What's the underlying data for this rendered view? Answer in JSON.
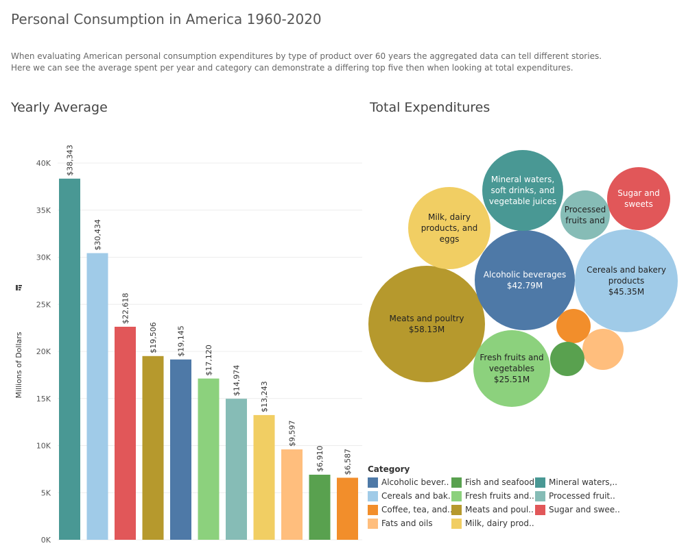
{
  "page": {
    "title": "Personal Consumption in America 1960-2020",
    "description_lines": [
      "When evaluating American personal consumption expenditures by type of product over 60 years the aggregated data can tell different stories.",
      "Here we can see the average spent per year and category can demonstrate a differing top five then when looking at total expenditures."
    ]
  },
  "chart_data": [
    {
      "type": "bar",
      "title": "Yearly Average",
      "ylabel": "Millions of Dollars",
      "ylim": [
        0,
        40000
      ],
      "yticks": [
        0,
        5000,
        10000,
        15000,
        20000,
        25000,
        30000,
        35000,
        40000
      ],
      "ytick_labels": [
        "0K",
        "5K",
        "10K",
        "15K",
        "20K",
        "25K",
        "30K",
        "35K",
        "40K"
      ],
      "grid": true,
      "bars": [
        {
          "category": "Mineral waters, soft drinks, and vegetable juices",
          "value": 38343,
          "label": "$38,343",
          "color": "#499894"
        },
        {
          "category": "Cereals and bakery products",
          "value": 30434,
          "label": "$30,434",
          "color": "#a0cbe8"
        },
        {
          "category": "Sugar and sweets",
          "value": 22618,
          "label": "$22,618",
          "color": "#e15759"
        },
        {
          "category": "Meats and poultry",
          "value": 19506,
          "label": "$19,506",
          "color": "#b6992d"
        },
        {
          "category": "Alcoholic beverages",
          "value": 19145,
          "label": "$19,145",
          "color": "#4e79a7"
        },
        {
          "category": "Fresh fruits and vegetables",
          "value": 17120,
          "label": "$17,120",
          "color": "#8cd17d"
        },
        {
          "category": "Processed fruits and vegetables",
          "value": 14974,
          "label": "$14,974",
          "color": "#86bcb6"
        },
        {
          "category": "Milk, dairy products, and eggs",
          "value": 13243,
          "label": "$13,243",
          "color": "#f1ce63"
        },
        {
          "category": "Fats and oils",
          "value": 9597,
          "label": "$9,597",
          "color": "#ffbe7d"
        },
        {
          "category": "Fish and seafood",
          "value": 6910,
          "label": "$6,910",
          "color": "#59a14f"
        },
        {
          "category": "Coffee, tea, and other beverage materials",
          "value": 6587,
          "label": "$6,587",
          "color": "#f28e2b"
        }
      ]
    },
    {
      "type": "bubble",
      "title": "Total Expenditures",
      "bubbles": [
        {
          "category": "Meats and poultry",
          "lines": [
            "Meats and poultry",
            "$58.13M"
          ],
          "value": 58.13,
          "color": "#b6992d",
          "text_color": "#222222"
        },
        {
          "category": "Cereals and bakery products",
          "lines": [
            "Cereals and bakery",
            "products",
            "$45.35M"
          ],
          "value": 45.35,
          "color": "#a0cbe8",
          "text_color": "#222222"
        },
        {
          "category": "Alcoholic beverages",
          "lines": [
            "Alcoholic beverages",
            "$42.79M"
          ],
          "value": 42.79,
          "color": "#4e79a7",
          "text_color": "#ffffff"
        },
        {
          "category": "Fresh fruits and vegetables",
          "lines": [
            "Fresh fruits and",
            "vegetables",
            "$25.51M"
          ],
          "value": 25.51,
          "color": "#8cd17d",
          "text_color": "#222222"
        },
        {
          "category": "Milk, dairy products, and eggs",
          "lines": [
            "Milk, dairy",
            "products, and",
            "eggs"
          ],
          "color": "#f1ce63",
          "text_color": "#222222"
        },
        {
          "category": "Mineral waters, soft drinks, and vegetable juices",
          "lines": [
            "Mineral waters,",
            "soft drinks, and",
            "vegetable juices"
          ],
          "color": "#499894",
          "text_color": "#ffffff"
        },
        {
          "category": "Sugar and sweets",
          "lines": [
            "Sugar and",
            "sweets"
          ],
          "color": "#e15759",
          "text_color": "#ffffff"
        },
        {
          "category": "Processed fruits and vegetables",
          "lines": [
            "Processed",
            "fruits and"
          ],
          "color": "#86bcb6",
          "text_color": "#222222"
        },
        {
          "category": "Fats and oils",
          "lines": [],
          "color": "#ffbe7d",
          "text_color": "#222222"
        },
        {
          "category": "Coffee, tea, and other beverage materials",
          "lines": [],
          "color": "#f28e2b",
          "text_color": "#222222"
        },
        {
          "category": "Fish and seafood",
          "lines": [],
          "color": "#59a14f",
          "text_color": "#222222"
        }
      ]
    }
  ],
  "legend": {
    "title": "Category",
    "items": [
      {
        "label": "Alcoholic bever..",
        "color": "#4e79a7"
      },
      {
        "label": "Fish and seafood",
        "color": "#59a14f"
      },
      {
        "label": "Mineral waters,..",
        "color": "#499894"
      },
      {
        "label": "Cereals and bak..",
        "color": "#a0cbe8"
      },
      {
        "label": "Fresh fruits and..",
        "color": "#8cd17d"
      },
      {
        "label": "Processed fruit..",
        "color": "#86bcb6"
      },
      {
        "label": "Coffee, tea, and..",
        "color": "#f28e2b"
      },
      {
        "label": "Meats and poul..",
        "color": "#b6992d"
      },
      {
        "label": "Sugar and swee..",
        "color": "#e15759"
      },
      {
        "label": "Fats and oils",
        "color": "#ffbe7d"
      },
      {
        "label": "Milk, dairy prod..",
        "color": "#f1ce63"
      }
    ]
  }
}
